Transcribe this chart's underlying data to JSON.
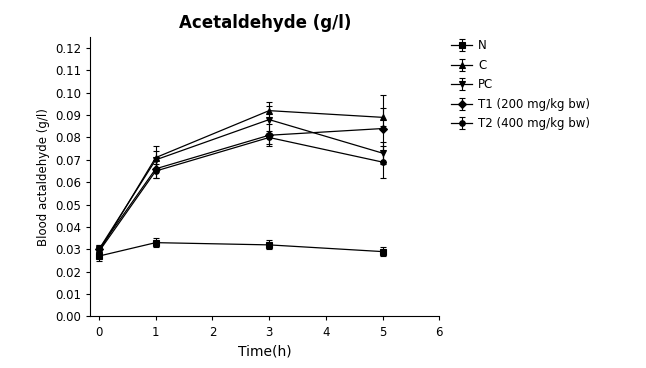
{
  "title": "Acetaldehyde (g/l)",
  "xlabel": "Time(h)",
  "ylabel": "Blood actaldehyde (g/l)",
  "x": [
    0,
    1,
    3,
    5
  ],
  "series": [
    {
      "label": "N",
      "marker": "s",
      "color": "#000000",
      "y": [
        0.027,
        0.033,
        0.032,
        0.029
      ],
      "yerr": [
        0.002,
        0.002,
        0.002,
        0.002
      ]
    },
    {
      "label": "C",
      "marker": "^",
      "color": "#000000",
      "y": [
        0.029,
        0.071,
        0.092,
        0.089
      ],
      "yerr": [
        0.002,
        0.005,
        0.004,
        0.004
      ]
    },
    {
      "label": "PC",
      "marker": "v",
      "color": "#000000",
      "y": [
        0.03,
        0.07,
        0.088,
        0.073
      ],
      "yerr": [
        0.002,
        0.004,
        0.006,
        0.005
      ]
    },
    {
      "label": "T1 (200 mg/kg bw)",
      "marker": "D",
      "color": "#000000",
      "y": [
        0.03,
        0.066,
        0.081,
        0.084
      ],
      "yerr": [
        0.002,
        0.004,
        0.005,
        0.015
      ]
    },
    {
      "label": "T2 (400 mg/kg bw)",
      "marker": "o",
      "color": "#000000",
      "y": [
        0.029,
        0.065,
        0.08,
        0.069
      ],
      "yerr": [
        0.002,
        0.003,
        0.003,
        0.007
      ]
    }
  ],
  "xlim": [
    -0.15,
    6
  ],
  "ylim": [
    0.0,
    0.125
  ],
  "yticks": [
    0.0,
    0.01,
    0.02,
    0.03,
    0.04,
    0.05,
    0.06,
    0.07,
    0.08,
    0.09,
    0.1,
    0.11,
    0.12
  ],
  "xticks": [
    0,
    1,
    2,
    3,
    4,
    5,
    6
  ]
}
